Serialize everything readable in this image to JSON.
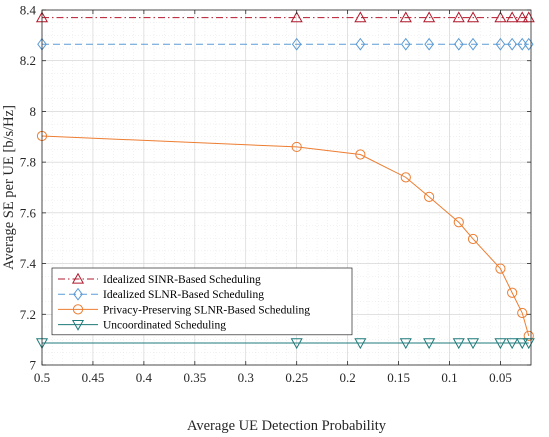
{
  "chart_data": {
    "type": "line",
    "xlabel": "Average UE Detection Probability",
    "ylabel": "Average SE per UE [b/s/Hz]",
    "x_reversed": true,
    "xlim": [
      0.5,
      0.02
    ],
    "ylim": [
      7,
      8.4
    ],
    "x_ticks": [
      0.5,
      0.45,
      0.4,
      0.35,
      0.3,
      0.25,
      0.2,
      0.15,
      0.1,
      0.05
    ],
    "x_tick_labels": [
      "0.5",
      "0.45",
      "0.4",
      "0.35",
      "0.3",
      "0.25",
      "0.2",
      "0.15",
      "0.1",
      "0.05"
    ],
    "y_ticks": [
      7,
      7.2,
      7.4,
      7.6,
      7.8,
      8,
      8.2,
      8.4
    ],
    "y_tick_labels": [
      "7",
      "7.2",
      "7.4",
      "7.6",
      "7.8",
      "8",
      "8.2",
      "8.4"
    ],
    "grid": true,
    "minor_grid": true,
    "legend_position": "bottom-left",
    "series": [
      {
        "name": "Idealized SINR-Based Scheduling",
        "color": "#b2182b",
        "line_style": "dash-dot",
        "marker": "triangle-up",
        "x": [
          0.5,
          0.25,
          0.1875,
          0.1429,
          0.12,
          0.0909,
          0.0769,
          0.05,
          0.0385,
          0.0286,
          0.0222
        ],
        "y": [
          8.37,
          8.37,
          8.37,
          8.37,
          8.37,
          8.37,
          8.37,
          8.37,
          8.37,
          8.37,
          8.37
        ]
      },
      {
        "name": "Idealized SLNR-Based Scheduling",
        "color": "#5b9bd5",
        "line_style": "dashed",
        "marker": "diamond",
        "x": [
          0.5,
          0.25,
          0.1875,
          0.1429,
          0.12,
          0.0909,
          0.0769,
          0.05,
          0.0385,
          0.0286,
          0.0222
        ],
        "y": [
          8.265,
          8.265,
          8.265,
          8.265,
          8.265,
          8.265,
          8.265,
          8.265,
          8.265,
          8.265,
          8.265
        ]
      },
      {
        "name": "Privacy-Preserving SLNR-Based Scheduling",
        "color": "#ed7d31",
        "line_style": "solid",
        "marker": "circle",
        "x": [
          0.5,
          0.25,
          0.1875,
          0.1429,
          0.12,
          0.0909,
          0.0769,
          0.05,
          0.0385,
          0.0286,
          0.0222
        ],
        "y": [
          7.903,
          7.86,
          7.83,
          7.74,
          7.663,
          7.563,
          7.497,
          7.38,
          7.285,
          7.205,
          7.115
        ]
      },
      {
        "name": "Uncoordinated Scheduling",
        "color": "#1f7a7a",
        "line_style": "solid",
        "marker": "triangle-down",
        "x": [
          0.5,
          0.25,
          0.1875,
          0.1429,
          0.12,
          0.0909,
          0.0769,
          0.05,
          0.0385,
          0.0286,
          0.0222
        ],
        "y": [
          7.087,
          7.087,
          7.087,
          7.087,
          7.087,
          7.087,
          7.087,
          7.087,
          7.087,
          7.087,
          7.087
        ]
      }
    ]
  }
}
